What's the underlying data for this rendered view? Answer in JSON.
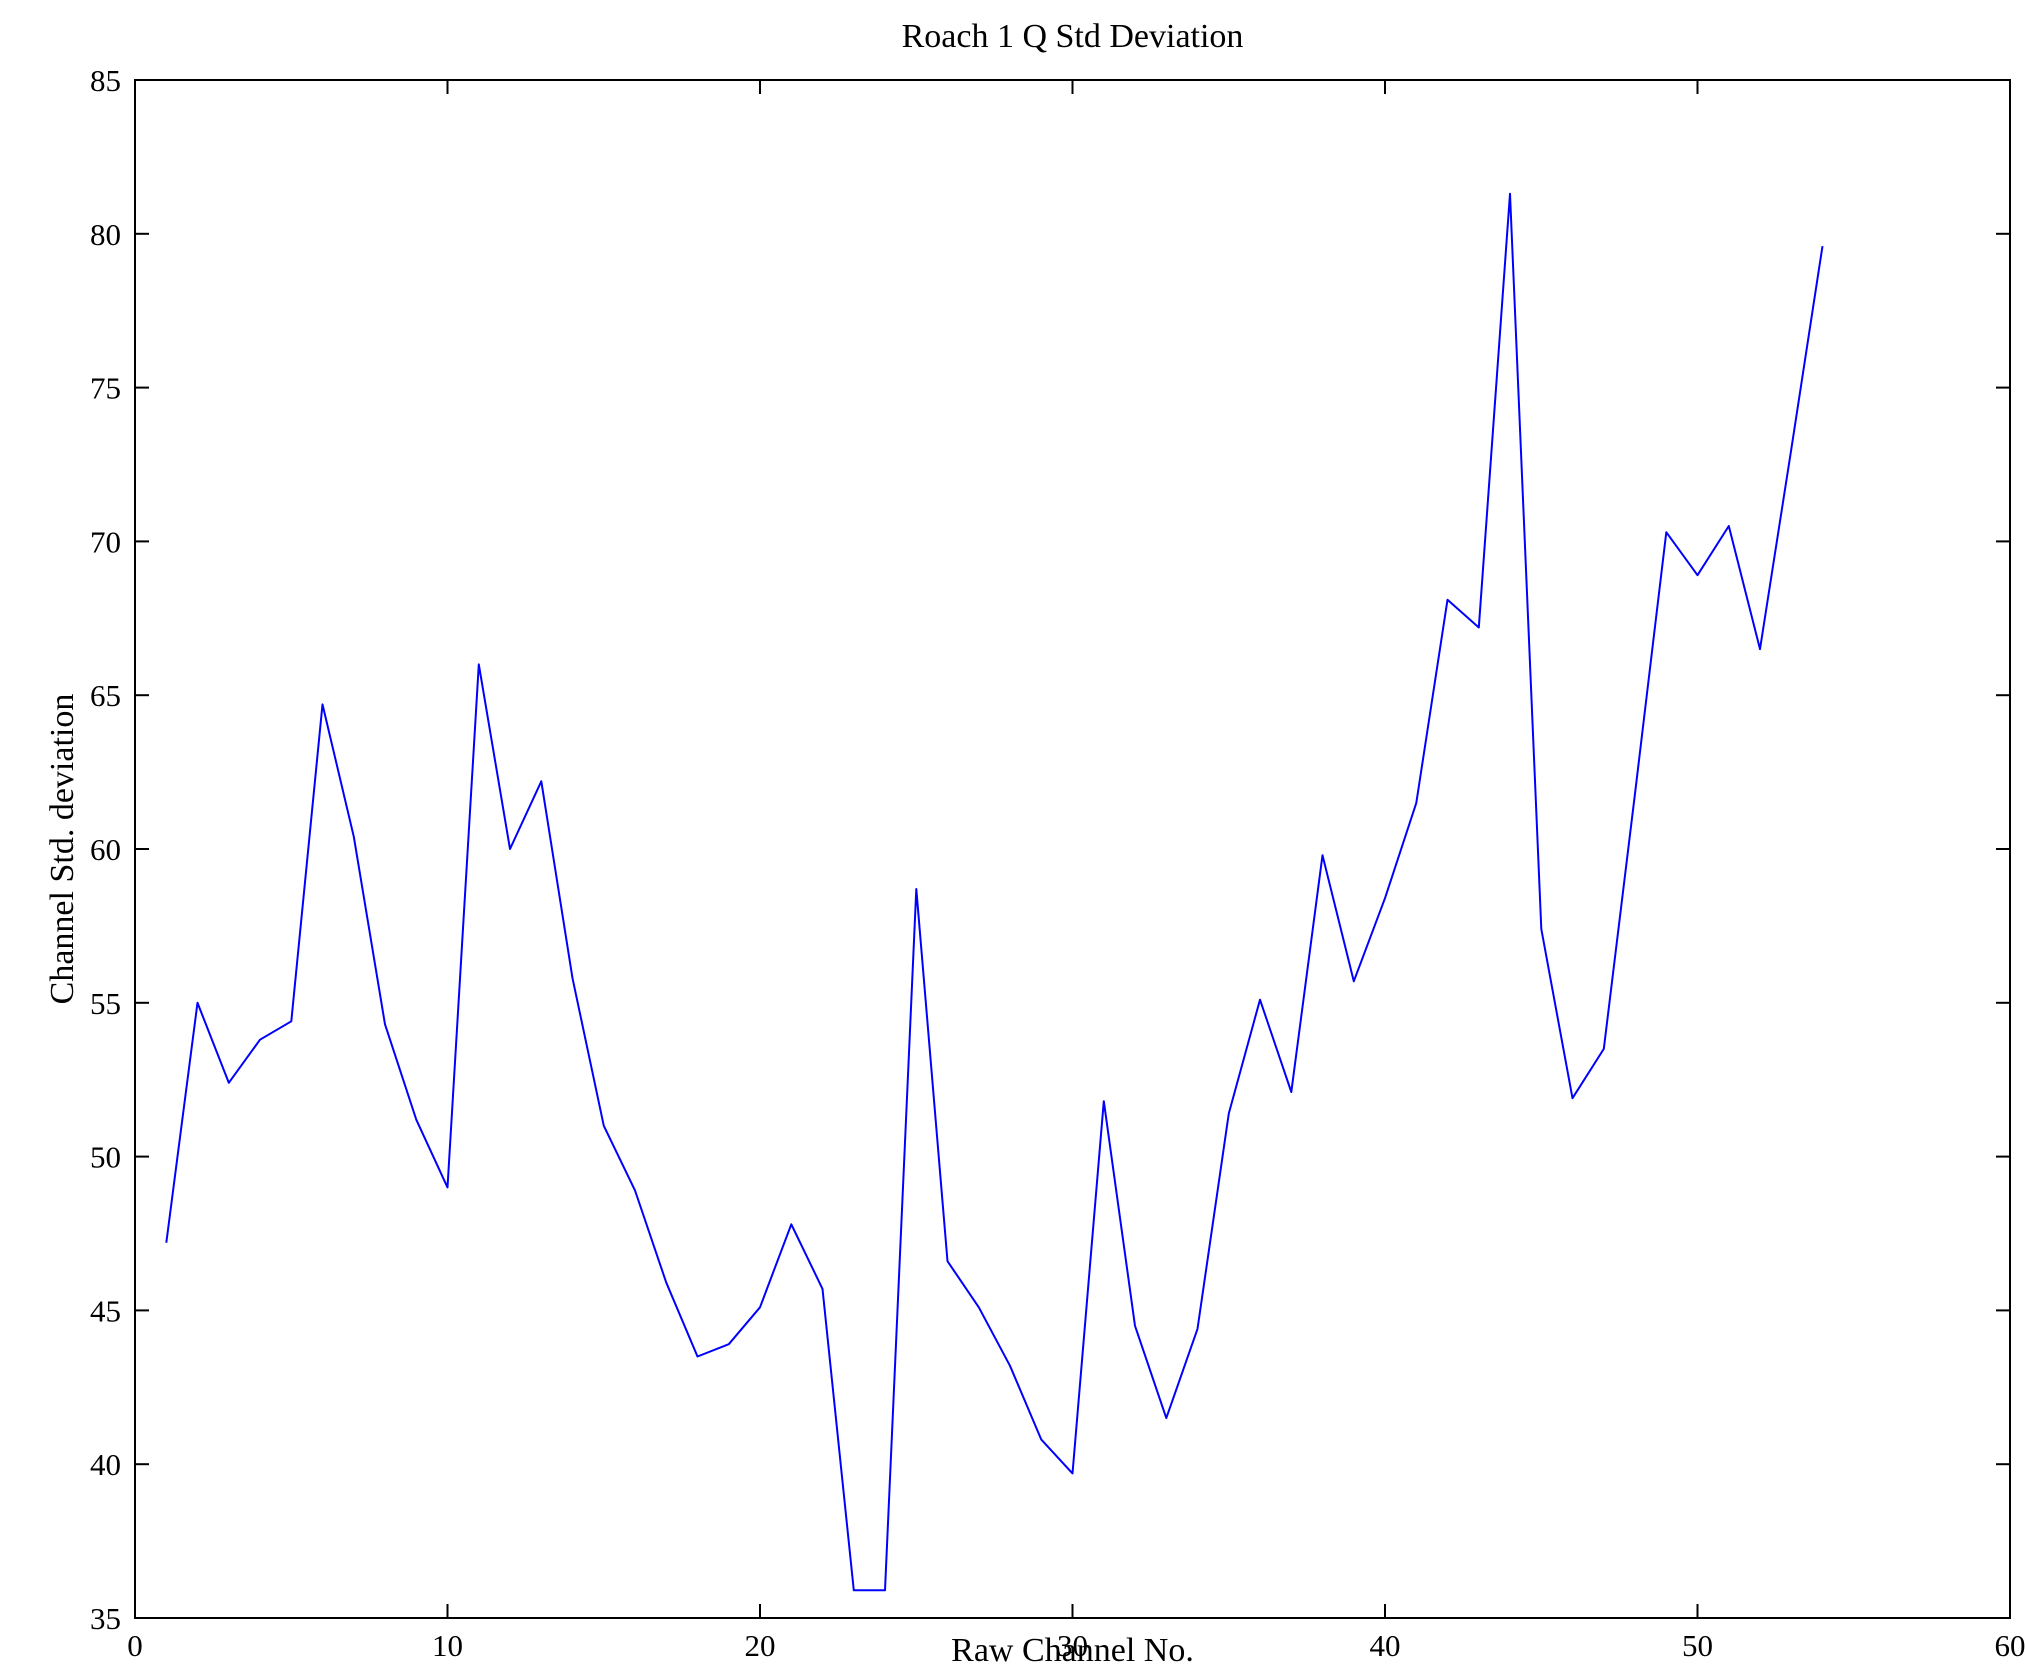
{
  "chart_data": {
    "type": "line",
    "title": "Roach 1 Q Std Deviation",
    "xlabel": "Raw Channel No.",
    "ylabel": "Channel Std. deviation",
    "xlim": [
      0,
      60
    ],
    "ylim": [
      35,
      85
    ],
    "xticks": [
      0,
      10,
      20,
      30,
      40,
      50,
      60
    ],
    "yticks": [
      35,
      40,
      45,
      50,
      55,
      60,
      65,
      70,
      75,
      80,
      85
    ],
    "grid": false,
    "legend": "none",
    "line_color": "#0000ff",
    "x": [
      1,
      2,
      3,
      4,
      5,
      6,
      7,
      8,
      9,
      10,
      11,
      12,
      13,
      14,
      15,
      16,
      17,
      18,
      19,
      20,
      21,
      22,
      23,
      24,
      25,
      26,
      27,
      28,
      29,
      30,
      31,
      32,
      33,
      34,
      35,
      36,
      37,
      38,
      39,
      40,
      41,
      42,
      43,
      44,
      45,
      46,
      47,
      48,
      49,
      50,
      51,
      52,
      53,
      54
    ],
    "y": [
      47.2,
      55.0,
      52.4,
      53.8,
      54.4,
      64.7,
      60.4,
      54.3,
      51.2,
      49.0,
      66.0,
      60.0,
      62.2,
      55.8,
      51.0,
      48.9,
      45.9,
      43.5,
      43.9,
      45.1,
      47.8,
      45.7,
      35.9,
      35.9,
      58.7,
      46.6,
      45.1,
      43.2,
      40.8,
      39.7,
      51.8,
      44.5,
      41.5,
      44.4,
      51.4,
      55.1,
      52.1,
      59.8,
      55.7,
      58.4,
      61.5,
      68.1,
      67.2,
      81.3,
      57.4,
      51.9,
      53.5,
      61.8,
      70.3,
      68.9,
      70.5,
      66.5,
      73.0,
      79.6
    ]
  }
}
